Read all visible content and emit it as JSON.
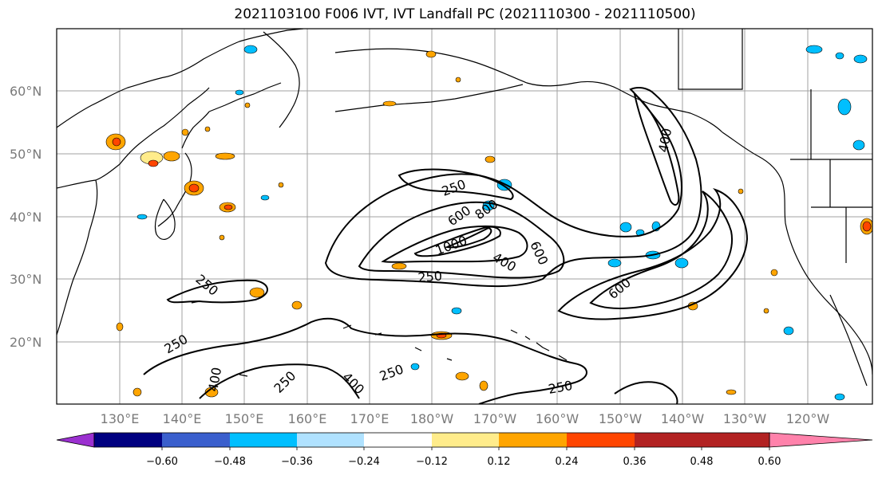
{
  "title": "2021103100 F006 IVT, IVT Landfall PC (2021110300 - 2021110500)",
  "lat_labels": [
    "60°N",
    "50°N",
    "40°N",
    "30°N",
    "20°N"
  ],
  "lon_labels": [
    "130°E",
    "140°E",
    "150°E",
    "160°E",
    "170°E",
    "180°W",
    "170°W",
    "160°W",
    "150°W",
    "140°W",
    "130°W",
    "120°W"
  ],
  "contour_labels": [
    "250",
    "600",
    "800",
    "1000",
    "400",
    "600",
    "250",
    "400",
    "600",
    "250",
    "250",
    "250",
    "250",
    "400",
    "400",
    "250"
  ],
  "colorbar": {
    "colors": [
      "#9b30d0",
      "#000080",
      "#3a5fcd",
      "#00bfff",
      "#b0e2ff",
      "#ffffff",
      "#ffec8b",
      "#ffa500",
      "#ff4500",
      "#b22222",
      "#ff82ab"
    ],
    "tick_labels": [
      "−0.60",
      "−0.48",
      "−0.36",
      "−0.24",
      "−0.12",
      "0.12",
      "0.24",
      "0.36",
      "0.48",
      "0.60"
    ]
  }
}
